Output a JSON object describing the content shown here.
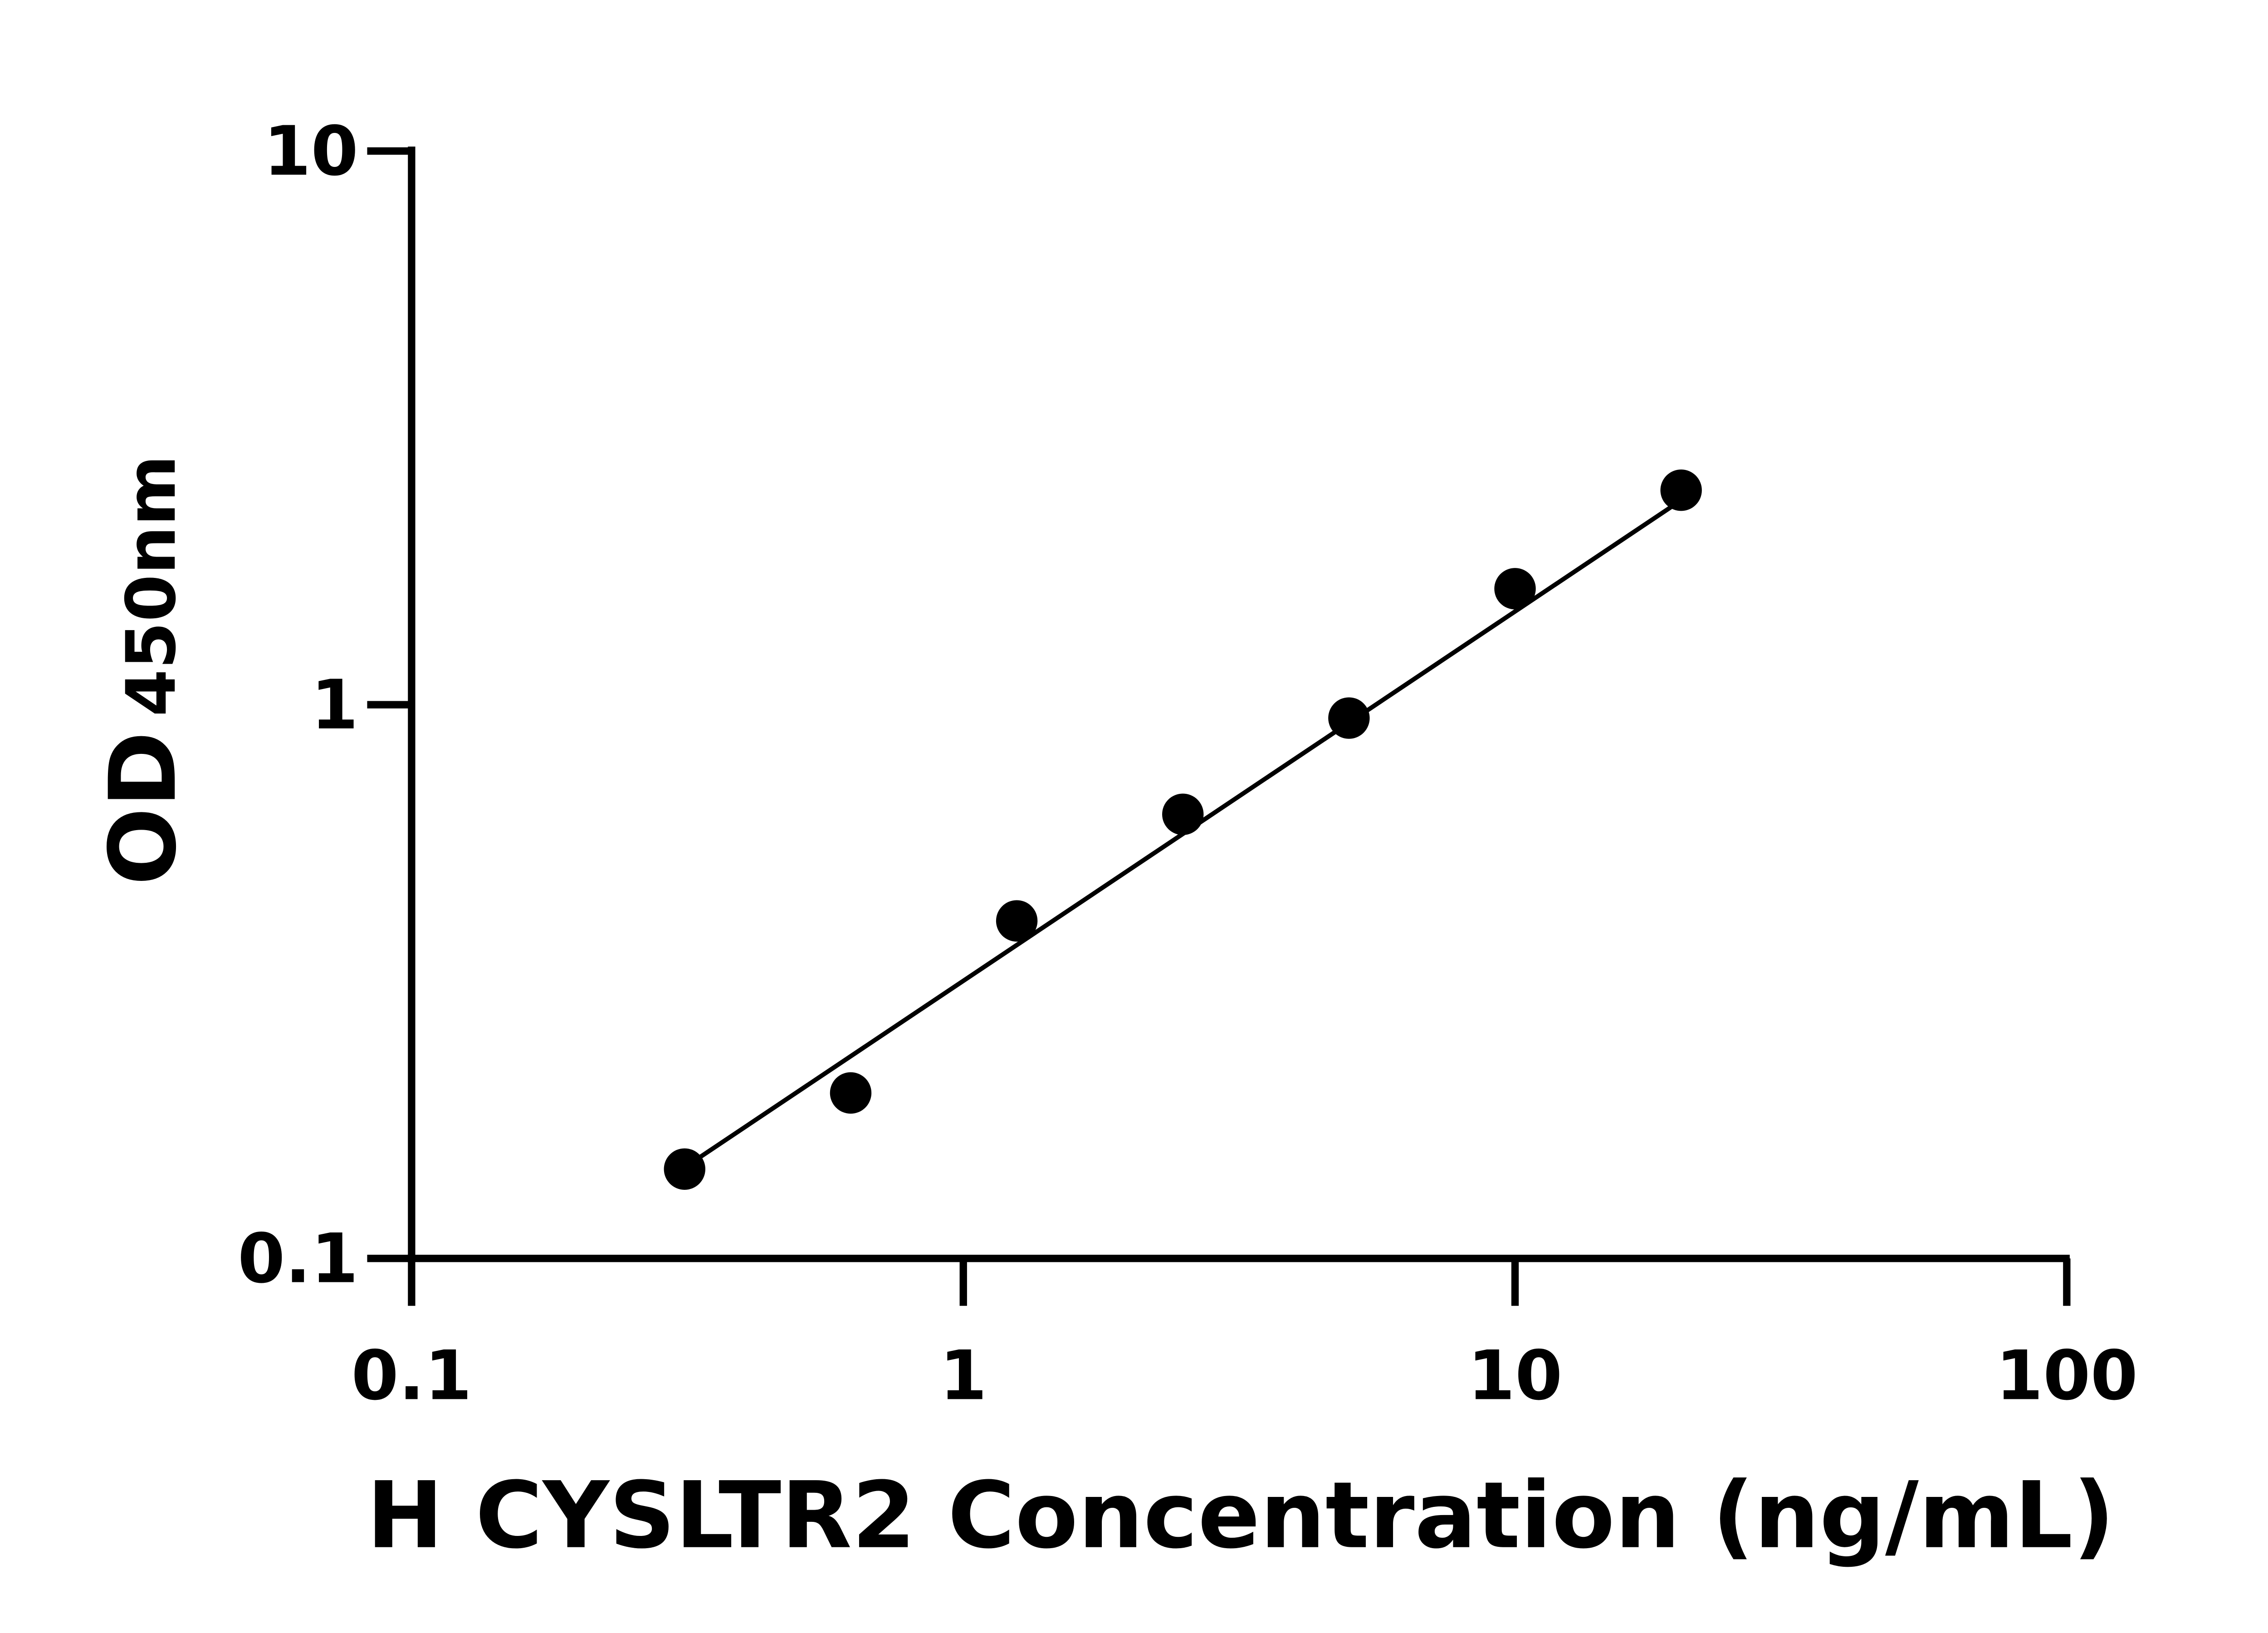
{
  "chart_data": {
    "type": "scatter",
    "xlabel": "H CYSLTR2 Concentration (ng/mL)",
    "ylabel": "OD",
    "ylabel_subscript": "450nm",
    "x": [
      0.3125,
      0.625,
      1.25,
      2.5,
      5,
      10,
      20
    ],
    "series": [
      {
        "color": "#000000",
        "values": [
          0.145,
          0.199,
          0.407,
          0.634,
          0.946,
          1.62,
          2.44
        ]
      }
    ],
    "fit": {
      "color": "#000000",
      "x": [
        0.3125,
        20
      ],
      "values": [
        0.146,
        2.34
      ]
    },
    "xlim": [
      0.1,
      100
    ],
    "ylim": [
      0.1,
      10
    ],
    "xticks": [
      0.1,
      1,
      10,
      100
    ],
    "yticks": [
      0.1,
      1,
      10
    ],
    "xscale": "log",
    "yscale": "log",
    "grid": false
  }
}
